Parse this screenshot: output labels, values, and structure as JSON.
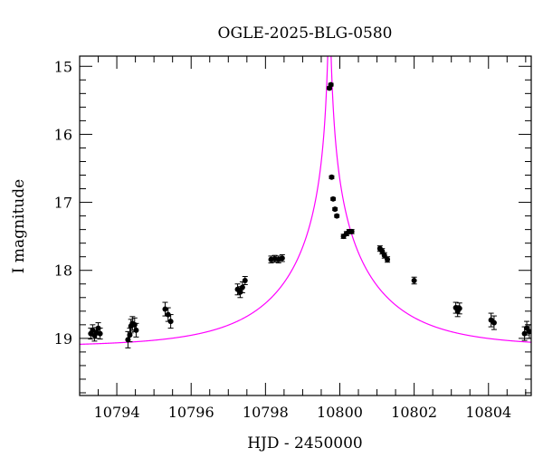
{
  "chart_data": {
    "type": "scatter",
    "title": "OGLE-2025-BLG-0580",
    "xlabel": "HJD - 2450000",
    "ylabel": "I magnitude",
    "xlim": [
      10793.0,
      10805.15
    ],
    "ylim": [
      19.84,
      14.85
    ],
    "y_inverted": true,
    "xticks": [
      10794,
      10796,
      10798,
      10800,
      10802,
      10804
    ],
    "yticks": [
      15,
      16,
      17,
      18,
      19
    ],
    "grid": false,
    "colors": {
      "points": "#000000",
      "model": "#ff00ff"
    },
    "model": {
      "type": "point-lens",
      "baseline_mag": 19.12,
      "t0": 10799.72,
      "u0": 0.01,
      "tE": 2.7
    },
    "points": [
      {
        "x": 10793.3,
        "y": 18.93,
        "err": 0.08
      },
      {
        "x": 10793.35,
        "y": 18.88,
        "err": 0.08
      },
      {
        "x": 10793.4,
        "y": 18.96,
        "err": 0.08
      },
      {
        "x": 10793.45,
        "y": 18.92,
        "err": 0.08
      },
      {
        "x": 10793.5,
        "y": 18.85,
        "err": 0.08
      },
      {
        "x": 10793.55,
        "y": 18.93,
        "err": 0.08
      },
      {
        "x": 10794.3,
        "y": 19.02,
        "err": 0.12
      },
      {
        "x": 10794.35,
        "y": 18.95,
        "err": 0.1
      },
      {
        "x": 10794.38,
        "y": 18.82,
        "err": 0.1
      },
      {
        "x": 10794.42,
        "y": 18.78,
        "err": 0.1
      },
      {
        "x": 10794.48,
        "y": 18.8,
        "err": 0.1
      },
      {
        "x": 10794.52,
        "y": 18.88,
        "err": 0.1
      },
      {
        "x": 10795.3,
        "y": 18.57,
        "err": 0.1
      },
      {
        "x": 10795.38,
        "y": 18.65,
        "err": 0.1
      },
      {
        "x": 10795.45,
        "y": 18.75,
        "err": 0.1
      },
      {
        "x": 10797.25,
        "y": 18.28,
        "err": 0.08
      },
      {
        "x": 10797.32,
        "y": 18.32,
        "err": 0.08
      },
      {
        "x": 10797.38,
        "y": 18.25,
        "err": 0.08
      },
      {
        "x": 10797.45,
        "y": 18.15,
        "err": 0.06
      },
      {
        "x": 10798.15,
        "y": 17.84,
        "err": 0.05
      },
      {
        "x": 10798.25,
        "y": 17.83,
        "err": 0.05
      },
      {
        "x": 10798.35,
        "y": 17.84,
        "err": 0.05
      },
      {
        "x": 10798.45,
        "y": 17.82,
        "err": 0.05
      },
      {
        "x": 10799.72,
        "y": 15.32,
        "err": 0.02
      },
      {
        "x": 10799.76,
        "y": 15.27,
        "err": 0.02
      },
      {
        "x": 10799.78,
        "y": 16.63,
        "err": 0.02
      },
      {
        "x": 10799.82,
        "y": 16.95,
        "err": 0.02
      },
      {
        "x": 10799.87,
        "y": 17.1,
        "err": 0.02
      },
      {
        "x": 10799.92,
        "y": 17.2,
        "err": 0.02
      },
      {
        "x": 10800.1,
        "y": 17.5,
        "err": 0.03
      },
      {
        "x": 10800.18,
        "y": 17.46,
        "err": 0.03
      },
      {
        "x": 10800.25,
        "y": 17.43,
        "err": 0.03
      },
      {
        "x": 10800.32,
        "y": 17.43,
        "err": 0.03
      },
      {
        "x": 10801.08,
        "y": 17.68,
        "err": 0.04
      },
      {
        "x": 10801.14,
        "y": 17.72,
        "err": 0.04
      },
      {
        "x": 10801.2,
        "y": 17.78,
        "err": 0.04
      },
      {
        "x": 10801.28,
        "y": 17.84,
        "err": 0.04
      },
      {
        "x": 10802.0,
        "y": 18.15,
        "err": 0.05
      },
      {
        "x": 10803.12,
        "y": 18.55,
        "err": 0.08
      },
      {
        "x": 10803.17,
        "y": 18.6,
        "err": 0.08
      },
      {
        "x": 10803.22,
        "y": 18.56,
        "err": 0.08
      },
      {
        "x": 10804.07,
        "y": 18.73,
        "err": 0.1
      },
      {
        "x": 10804.15,
        "y": 18.77,
        "err": 0.1
      },
      {
        "x": 10804.97,
        "y": 18.93,
        "err": 0.1
      },
      {
        "x": 10805.03,
        "y": 18.85,
        "err": 0.1
      },
      {
        "x": 10805.1,
        "y": 18.9,
        "err": 0.1
      }
    ]
  }
}
